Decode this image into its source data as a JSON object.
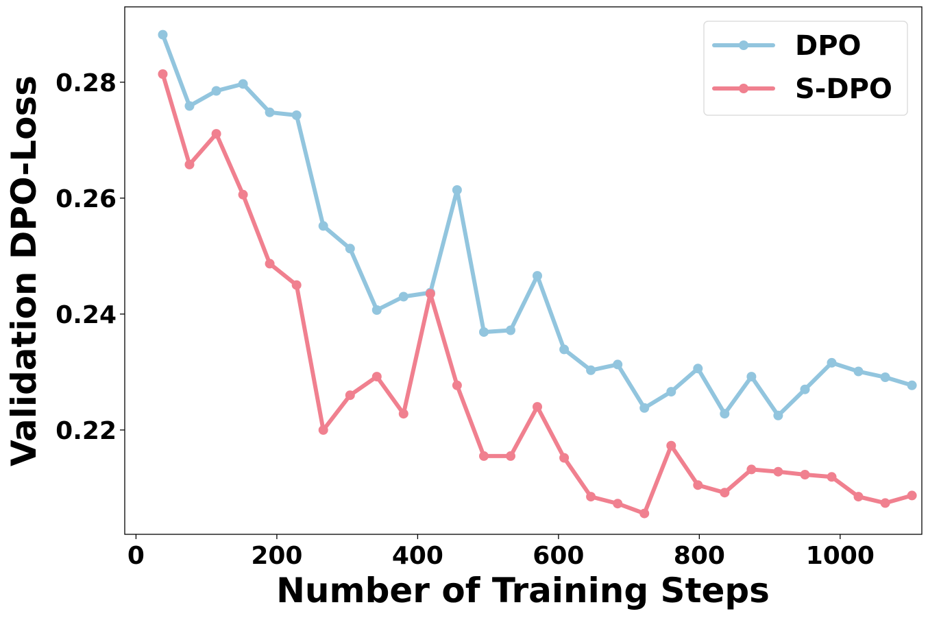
{
  "chart_data": {
    "type": "line",
    "title": "",
    "xlabel": "Number of Training Steps",
    "ylabel": "Validation DPO-Loss",
    "xlim": [
      -16,
      1116
    ],
    "ylim": [
      0.202,
      0.293
    ],
    "xticks": [
      0,
      200,
      400,
      600,
      800,
      1000
    ],
    "yticks": [
      0.22,
      0.24,
      0.26,
      0.28
    ],
    "ytick_labels": [
      "0.22",
      "0.24",
      "0.26",
      "0.28"
    ],
    "grid": false,
    "legend_position": "top-right",
    "series": [
      {
        "name": "DPO",
        "color": "#92c5de",
        "x": [
          38,
          76,
          114,
          152,
          190,
          228,
          266,
          304,
          342,
          380,
          418,
          456,
          494,
          532,
          570,
          608,
          646,
          684,
          722,
          760,
          798,
          836,
          874,
          912,
          950,
          988,
          1026,
          1064,
          1102
        ],
        "y": [
          0.2882,
          0.2759,
          0.2785,
          0.2797,
          0.2748,
          0.2743,
          0.2552,
          0.2513,
          0.2407,
          0.243,
          0.2437,
          0.2614,
          0.2369,
          0.2372,
          0.2466,
          0.2339,
          0.2303,
          0.2313,
          0.2238,
          0.2266,
          0.2306,
          0.2228,
          0.2292,
          0.2225,
          0.227,
          0.2316,
          0.2301,
          0.2291,
          0.2277
        ]
      },
      {
        "name": "S-DPO",
        "color": "#f0808f",
        "x": [
          38,
          76,
          114,
          152,
          190,
          228,
          266,
          304,
          342,
          380,
          418,
          456,
          494,
          532,
          570,
          608,
          646,
          684,
          722,
          760,
          798,
          836,
          874,
          912,
          950,
          988,
          1026,
          1064,
          1102
        ],
        "y": [
          0.2814,
          0.2658,
          0.2711,
          0.2606,
          0.2487,
          0.245,
          0.22,
          0.226,
          0.2292,
          0.2228,
          0.2435,
          0.2277,
          0.2155,
          0.2155,
          0.224,
          0.2152,
          0.2085,
          0.2073,
          0.2056,
          0.2173,
          0.2105,
          0.2092,
          0.2132,
          0.2128,
          0.2123,
          0.2119,
          0.2085,
          0.2074,
          0.2087
        ]
      }
    ]
  }
}
